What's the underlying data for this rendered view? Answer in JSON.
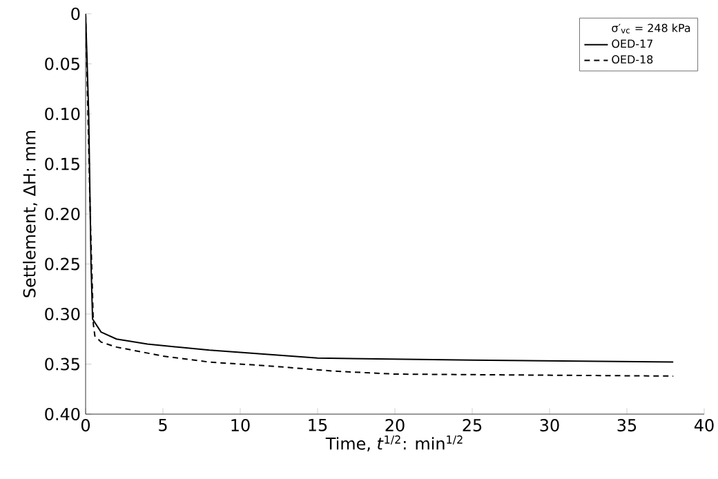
{
  "chart_data": {
    "type": "line",
    "xlabel": "Time, *t*$^{1/2}$: min$^{1/2}$",
    "ylabel": "Settlement, ΔH: mm",
    "legend_title": "σ′$_{vc}$ = 248 kPa",
    "legend": "top right",
    "grid": false,
    "marker": "none",
    "xlim": [
      0,
      40
    ],
    "xticks": [
      0,
      5,
      10,
      15,
      20,
      25,
      30,
      35,
      40
    ],
    "ylim": [
      0.4,
      0
    ],
    "yticks": [
      0,
      0.05,
      {
        "value": 0.1,
        "label": "0.10"
      },
      0.15,
      {
        "value": 0.2,
        "label": "0.20"
      },
      0.25,
      {
        "value": 0.3,
        "label": "0.30"
      },
      0.35,
      {
        "value": 0.4,
        "label": "0.40"
      }
    ],
    "series": [
      {
        "name": "OED-17",
        "color": "#000000",
        "line_style": "solid",
        "x": [
          0,
          0.2,
          0.35,
          0.45,
          1,
          2,
          4,
          8,
          15,
          25,
          38
        ],
        "values": [
          0,
          0.1,
          0.25,
          0.305,
          0.318,
          0.325,
          0.33,
          0.336,
          0.344,
          0.346,
          0.348
        ]
      },
      {
        "name": "OED-18",
        "color": "#000000",
        "line_style": "dashed",
        "x": [
          0,
          0.3,
          0.5,
          0.6,
          1,
          2,
          5,
          8,
          12,
          16,
          20,
          38
        ],
        "values": [
          0,
          0.2,
          0.31,
          0.322,
          0.328,
          0.333,
          0.342,
          0.348,
          0.352,
          0.357,
          0.36,
          0.362
        ]
      }
    ]
  }
}
